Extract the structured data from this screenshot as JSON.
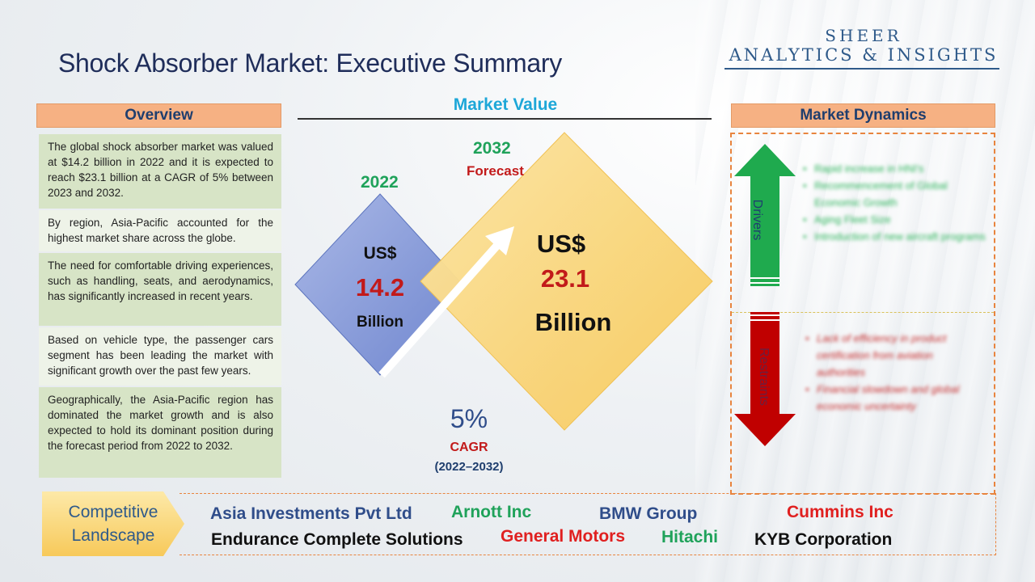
{
  "title": "Shock Absorber Market: Executive Summary",
  "logo": {
    "line1": "SHEER",
    "line2": "ANALYTICS & INSIGHTS"
  },
  "overview": {
    "heading": "Overview",
    "items": [
      "The global shock absorber market was valued at $14.2 billion in 2022 and it is expected to reach $23.1 billion at a CAGR of 5% between 2023 and 2032.",
      "By region, Asia-Pacific accounted for the highest market share across the globe.",
      "The need for comfortable driving experiences, such as handling, seats, and aerodynamics, has significantly increased in recent years.",
      "Based on vehicle type, the passenger cars segment has been leading the market with significant growth over the past few years.",
      "Geographically, the Asia-Pacific region has dominated the market growth and is also expected to hold its dominant position during the forecast period from 2022 to 2032."
    ]
  },
  "market_value": {
    "heading": "Market Value",
    "base": {
      "year": "2022",
      "currency": "US$",
      "value": "14.2",
      "unit": "Billion"
    },
    "forecast": {
      "year": "2032",
      "label": "Forecast",
      "currency": "US$",
      "value": "23.1",
      "unit": "Billion"
    },
    "cagr": {
      "value": "5%",
      "label": "CAGR",
      "range": "(2022–2032)"
    }
  },
  "market_dynamics": {
    "heading": "Market Dynamics",
    "drivers_label": "Drivers",
    "restraints_label": "Restraints",
    "drivers": [
      "Rapid increase in HNI's",
      "Recommencement of Global Economic Growth",
      "Aging Fleet Size",
      "Introduction of new aircraft programs"
    ],
    "restraints": [
      "Lack of efficiency in product certification from aviation authorities",
      "Financial slowdown and global economic uncertainty"
    ],
    "colors": {
      "drivers": "#1faa4e",
      "restraints": "#c00000"
    }
  },
  "competitive_landscape": {
    "label_line1": "Competitive",
    "label_line2": "Landscape",
    "companies": [
      {
        "name": "Asia Investments Pvt Ltd",
        "color": "#2f4d8a"
      },
      {
        "name": "Arnott Inc",
        "color": "#1fa25a"
      },
      {
        "name": "BMW Group",
        "color": "#2f4d8a"
      },
      {
        "name": "Cummins Inc",
        "color": "#e02020"
      },
      {
        "name": "Endurance Complete Solutions",
        "color": "#111111"
      },
      {
        "name": "General Motors",
        "color": "#e02020"
      },
      {
        "name": "Hitachi",
        "color": "#1fa25a"
      },
      {
        "name": "KYB Corporation",
        "color": "#111111"
      }
    ]
  }
}
